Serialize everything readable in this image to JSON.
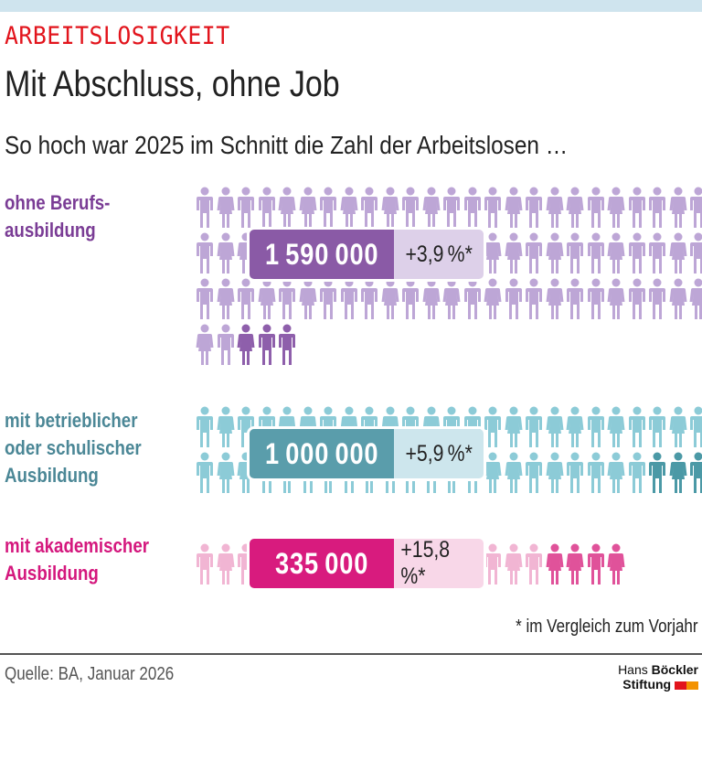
{
  "header": {
    "kicker": "ARBEITSLOSIGKEIT",
    "title": "Mit Abschluss, ohne Job",
    "subtitle": "So hoch war 2025 im Schnitt die Zahl der Arbeitslosen …"
  },
  "groups": [
    {
      "label_lines": [
        "ohne Berufs-",
        "ausbildung"
      ],
      "value_label": "1 590 000",
      "change_label": "+3,9 %*",
      "label_color": "#7a3c95",
      "box_dark": "#8a5aa6",
      "box_light": "#ddd0e9",
      "fig_light": "#bda6d6",
      "fig_dark": "#8e5fab"
    },
    {
      "label_lines": [
        "mit betrieblicher",
        "oder schulischer",
        "Ausbildung"
      ],
      "value_label": "1 000 000",
      "change_label": "+5,9 %*",
      "label_color": "#4b8796",
      "box_dark": "#5a9dab",
      "box_light": "#cde6ed",
      "fig_light": "#8ccbd7",
      "fig_dark": "#4b99a6"
    },
    {
      "label_lines": [
        "mit akademischer",
        "Ausbildung"
      ],
      "value_label": "335 000",
      "change_label": "+15,8 %*",
      "label_color": "#d4177d",
      "box_dark": "#d81b7e",
      "box_light": "#f8d7e8",
      "fig_light": "#f1b5d3",
      "fig_dark": "#e0529a"
    }
  ],
  "footnote": "* im Vergleich zum Vorjahr",
  "source": "Quelle: BA, Januar 2026",
  "logo": {
    "line1_regular": "Hans ",
    "line1_bold": "Böckler",
    "line2": "Stiftung",
    "colors": [
      "#e2141c",
      "#f39200"
    ]
  },
  "chart_data": {
    "type": "pictogram",
    "title": "Mit Abschluss, ohne Job",
    "subtitle": "So hoch war 2025 im Schnitt die Zahl der Arbeitslosen …",
    "categories": [
      "ohne Berufsausbildung",
      "mit betrieblicher oder schulischer Ausbildung",
      "mit akademischer Ausbildung"
    ],
    "values": [
      1590000,
      1000000,
      335000
    ],
    "change_vs_previous_year_pct": [
      3.9,
      5.9,
      15.8
    ],
    "unit": "Arbeitslose (Jahresdurchschnitt 2025)",
    "icon_value": 20000,
    "icons_total": [
      80,
      50,
      17
    ],
    "icons_highlighted_increase": [
      3,
      3,
      4
    ],
    "footnote": "* im Vergleich zum Vorjahr",
    "source": "Quelle: BA, Januar 2026"
  }
}
